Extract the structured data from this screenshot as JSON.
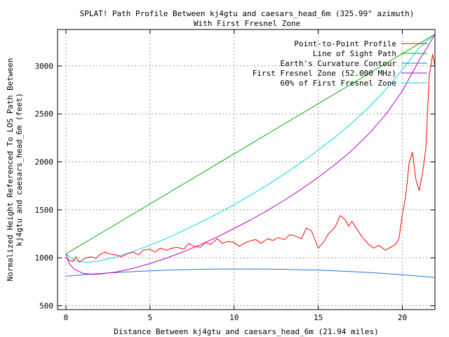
{
  "chart_data": {
    "type": "line",
    "title": "SPLAT! Path Profile Between kj4gtu and caesars_head_6m (325.99° azimuth)",
    "subtitle": "With First Fresnel Zone",
    "xlabel": "Distance Between kj4gtu and caesars_head_6m (21.94 miles)",
    "ylabel": "Normalized Height Referenced To LOS Path Between kj4gtu and caesars_head_6m (feet)",
    "xlim": [
      -0.5,
      21.94
    ],
    "ylim": [
      460,
      3380
    ],
    "xticks": [
      0,
      5,
      10,
      15,
      20
    ],
    "yticks": [
      500,
      1000,
      1500,
      2000,
      2500,
      3000
    ],
    "grid": true,
    "legend_position": "top-right",
    "series": [
      {
        "name": "Point-to-Point Profile",
        "color": "#ff0000",
        "x": [
          0,
          0.2,
          0.4,
          0.6,
          0.8,
          1.0,
          1.2,
          1.5,
          1.8,
          2.0,
          2.3,
          2.6,
          3.0,
          3.3,
          3.6,
          4.0,
          4.3,
          4.6,
          5.0,
          5.3,
          5.6,
          6.0,
          6.3,
          6.6,
          7.0,
          7.3,
          7.6,
          8.0,
          8.3,
          8.6,
          9.0,
          9.3,
          9.6,
          10.0,
          10.3,
          10.6,
          11.0,
          11.3,
          11.6,
          12.0,
          12.3,
          12.6,
          13.0,
          13.3,
          13.6,
          14.0,
          14.3,
          14.6,
          15.0,
          15.3,
          15.6,
          16.0,
          16.3,
          16.6,
          16.8,
          17.0,
          17.3,
          17.6,
          18.0,
          18.3,
          18.6,
          19.0,
          19.3,
          19.6,
          19.8,
          20.0,
          20.2,
          20.4,
          20.6,
          20.8,
          21.0,
          21.2,
          21.4,
          21.6,
          21.8,
          21.94
        ],
        "values": [
          1000,
          975,
          960,
          1010,
          955,
          980,
          1000,
          1010,
          995,
          1030,
          1060,
          1040,
          1030,
          1010,
          1040,
          1060,
          1030,
          1080,
          1090,
          1060,
          1100,
          1080,
          1100,
          1110,
          1090,
          1150,
          1120,
          1110,
          1160,
          1140,
          1200,
          1150,
          1170,
          1160,
          1120,
          1150,
          1180,
          1190,
          1150,
          1200,
          1180,
          1210,
          1190,
          1240,
          1230,
          1200,
          1310,
          1280,
          1100,
          1160,
          1250,
          1320,
          1440,
          1400,
          1330,
          1380,
          1300,
          1220,
          1140,
          1100,
          1130,
          1080,
          1110,
          1140,
          1200,
          1450,
          1640,
          1980,
          2100,
          1820,
          1700,
          1880,
          2150,
          2900,
          3120,
          3000
        ]
      },
      {
        "name": "Line of Sight Path",
        "color": "#00b000",
        "x": [
          0,
          21.94
        ],
        "values": [
          1040,
          3330
        ]
      },
      {
        "name": "Earth's Curvature Contour",
        "color": "#1f77d4",
        "x": [
          0,
          1,
          2,
          3,
          4,
          5,
          6,
          7,
          8,
          9,
          10,
          11,
          12,
          13,
          14,
          15,
          16,
          17,
          18,
          19,
          20,
          21,
          21.94
        ],
        "values": [
          808,
          823,
          836,
          847,
          856,
          864,
          871,
          876,
          880,
          883,
          884,
          884,
          883,
          880,
          876,
          871,
          864,
          856,
          847,
          836,
          823,
          808,
          795
        ]
      },
      {
        "name": "First Fresnel Zone (52.000 MHz)",
        "color": "#b000c8",
        "x": [
          0,
          0.2,
          0.5,
          1.0,
          1.5,
          2.0,
          3.0,
          4.0,
          5.0,
          6.0,
          7.0,
          8.0,
          9.0,
          10.0,
          11.0,
          12.0,
          13.0,
          14.0,
          15.0,
          16.0,
          17.0,
          18.0,
          19.0,
          20.0,
          21.0,
          21.5,
          21.94
        ],
        "values": [
          1040,
          940,
          880,
          840,
          828,
          830,
          852,
          890,
          940,
          998,
          1065,
          1138,
          1218,
          1305,
          1397,
          1496,
          1602,
          1716,
          1839,
          1972,
          2120,
          2290,
          2490,
          2740,
          3060,
          3200,
          3330
        ]
      },
      {
        "name": "60% of First Fresnel Zone",
        "color": "#00d8e8",
        "x": [
          0,
          0.5,
          1.0,
          1.5,
          2.0,
          3.0,
          4.0,
          5.0,
          6.0,
          7.0,
          8.0,
          9.0,
          10.0,
          11.0,
          12.0,
          13.0,
          14.0,
          15.0,
          16.0,
          17.0,
          18.0,
          19.0,
          20.0,
          21.0,
          21.5,
          21.94
        ],
        "values": [
          1040,
          975,
          955,
          957,
          968,
          1010,
          1065,
          1132,
          1205,
          1285,
          1370,
          1460,
          1555,
          1656,
          1762,
          1875,
          1995,
          2122,
          2258,
          2405,
          2568,
          2750,
          2962,
          3188,
          3265,
          3330
        ]
      }
    ]
  }
}
